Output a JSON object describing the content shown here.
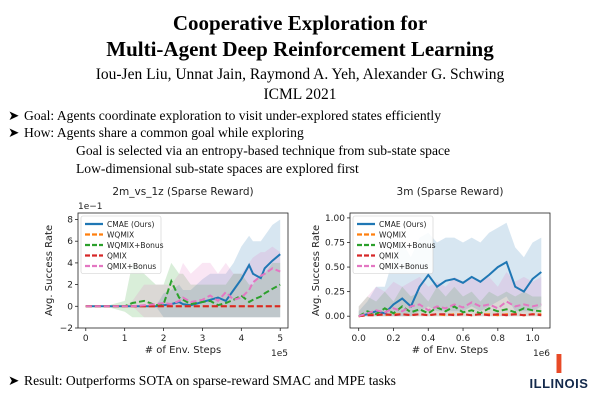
{
  "poster": {
    "title_line1": "Cooperative Exploration for",
    "title_line2": "Multi-Agent Deep Reinforcement Learning",
    "authors": "Iou-Jen Liu, Unnat Jain, Raymond A. Yeh, Alexander G. Schwing",
    "venue": "ICML 2021",
    "bullet_glyph": "➤",
    "goal": "Goal: Agents coordinate exploration to visit under-explored states efficiently",
    "how": "How: Agents share a common goal while exploring",
    "how_sub1": "Goal is selected via an entropy-based technique from sub-state space",
    "how_sub2": "Low-dimensional sub-state spaces are explored first",
    "result": "Result: Outperforms SOTA on sparse-reward SMAC and MPE tasks",
    "logo_text": "ILLINOIS",
    "logo_mark": "I",
    "logo_color": "#e84a27",
    "logo_text_color": "#13294b"
  },
  "chart_data": [
    {
      "type": "line",
      "title": "2m_vs_1z (Sparse Reward)",
      "xlabel": "# of Env. Steps",
      "ylabel": "Avg. Success Rate",
      "x_multiplier": "1e5",
      "y_multiplier": "1e−1",
      "xlim": [
        -0.2,
        5.2
      ],
      "ylim": [
        -2,
        8.6
      ],
      "xticks": [
        0,
        1,
        2,
        3,
        4,
        5
      ],
      "yticks": [
        -2,
        0,
        2,
        4,
        6,
        8
      ],
      "xtick_labels": [
        "0",
        "1",
        "2",
        "3",
        "4",
        "5"
      ],
      "ytick_labels": [
        "−2",
        "0",
        "2",
        "4",
        "6",
        "8"
      ],
      "legend_position": "top-left",
      "x": [
        0,
        0.5,
        1.0,
        1.2,
        1.5,
        1.8,
        2.0,
        2.2,
        2.4,
        2.5,
        2.7,
        3.0,
        3.2,
        3.4,
        3.6,
        3.8,
        4.0,
        4.2,
        4.3,
        4.5,
        4.6,
        4.8,
        5.0
      ],
      "series": [
        {
          "name": "CMAE (Ours)",
          "color": "#1f77b4",
          "style": "solid",
          "values": [
            0,
            0,
            0,
            0,
            0,
            0,
            0.1,
            0.2,
            0.4,
            0.2,
            0.1,
            0.4,
            0.6,
            0.8,
            0.5,
            1.5,
            2.5,
            3.8,
            3.0,
            2.6,
            3.5,
            4.2,
            4.8
          ],
          "band": [
            [
              0,
              0
            ],
            [
              0,
              0
            ],
            [
              0,
              0
            ],
            [
              0,
              0
            ],
            [
              0,
              0
            ],
            [
              0,
              0
            ],
            [
              -1,
              1.2
            ],
            [
              -1,
              1.5
            ],
            [
              -1,
              2
            ],
            [
              -1,
              1.5
            ],
            [
              -1,
              1.5
            ],
            [
              -1,
              2.5
            ],
            [
              -1,
              3
            ],
            [
              -1,
              3
            ],
            [
              -1,
              3
            ],
            [
              -1,
              4
            ],
            [
              -1,
              5.5
            ],
            [
              -1,
              6.5
            ],
            [
              -1,
              6
            ],
            [
              -1,
              6
            ],
            [
              -1,
              6.5
            ],
            [
              -1,
              7.5
            ],
            [
              -1,
              8
            ]
          ]
        },
        {
          "name": "WQMIX",
          "color": "#ff7f0e",
          "style": "dashed",
          "values": [
            0,
            0,
            0,
            0,
            0,
            0,
            0,
            0,
            0,
            0,
            0,
            0,
            0,
            0,
            0,
            0,
            0,
            0,
            0,
            0,
            0,
            0,
            0
          ]
        },
        {
          "name": "WQMIX+Bonus",
          "color": "#2ca02c",
          "style": "dashed",
          "values": [
            0,
            0,
            0,
            0.3,
            0.5,
            0.1,
            0.2,
            2.3,
            0.8,
            0.6,
            0.2,
            0.4,
            0.5,
            0.1,
            0.3,
            0.6,
            1.0,
            0.4,
            0.6,
            0.9,
            1.2,
            1.6,
            2.0
          ],
          "band": [
            [
              0,
              0
            ],
            [
              0,
              0
            ],
            [
              -0.5,
              0.5
            ],
            [
              -1,
              4
            ],
            [
              -1,
              3
            ],
            [
              -1,
              2
            ],
            [
              -1,
              2
            ],
            [
              -1,
              4
            ],
            [
              -1,
              3
            ],
            [
              -1,
              3
            ],
            [
              -1,
              2
            ],
            [
              -1,
              2
            ],
            [
              -1,
              2
            ],
            [
              -1,
              2
            ],
            [
              -1,
              2
            ],
            [
              -1,
              3
            ],
            [
              -1,
              3
            ],
            [
              -1,
              2
            ],
            [
              -1,
              2
            ],
            [
              -1,
              3
            ],
            [
              -1,
              3
            ],
            [
              -1,
              4
            ],
            [
              -1,
              4
            ]
          ]
        },
        {
          "name": "QMIX",
          "color": "#d62728",
          "style": "dashed",
          "values": [
            0,
            0,
            0,
            0,
            0,
            0,
            0,
            0,
            0,
            0,
            0,
            0,
            0,
            0,
            0,
            0,
            0,
            0,
            0,
            0,
            0,
            0,
            0
          ]
        },
        {
          "name": "QMIX+Bonus",
          "color": "#e377c2",
          "style": "dashed",
          "values": [
            0,
            0,
            0,
            0,
            0.1,
            0.2,
            0.3,
            0.2,
            0.5,
            0.8,
            0.4,
            0.6,
            1.0,
            0.5,
            1.3,
            0.6,
            0.8,
            1.5,
            2.2,
            2.8,
            3.0,
            3.5,
            3.2
          ],
          "band": [
            [
              0,
              0
            ],
            [
              0,
              0
            ],
            [
              0,
              0
            ],
            [
              0,
              0.5
            ],
            [
              -1,
              2
            ],
            [
              -1,
              2
            ],
            [
              -1,
              2
            ],
            [
              -1,
              2
            ],
            [
              -1,
              3
            ],
            [
              -1,
              4
            ],
            [
              -1,
              3
            ],
            [
              -1,
              4
            ],
            [
              -1,
              4
            ],
            [
              -1,
              3
            ],
            [
              -1,
              4
            ],
            [
              -1,
              3
            ],
            [
              -1,
              3
            ],
            [
              -1,
              4
            ],
            [
              -1,
              4.5
            ],
            [
              -1,
              5
            ],
            [
              -1,
              5
            ],
            [
              -1,
              5.5
            ],
            [
              -1,
              5
            ]
          ]
        }
      ]
    },
    {
      "type": "line",
      "title": "3m (Sparse Reward)",
      "xlabel": "# of Env. Steps",
      "ylabel": "Avg. Success Rate",
      "x_multiplier": "1e6",
      "xlim": [
        -0.05,
        1.1
      ],
      "ylim": [
        -0.12,
        1.05
      ],
      "xticks": [
        0,
        0.2,
        0.4,
        0.6,
        0.8,
        1.0
      ],
      "yticks": [
        0,
        0.25,
        0.5,
        0.75,
        1.0
      ],
      "xtick_labels": [
        "0.0",
        "0.2",
        "0.4",
        "0.6",
        "0.8",
        "1.0"
      ],
      "ytick_labels": [
        "0.00",
        "0.25",
        "0.50",
        "0.75",
        "1.00"
      ],
      "legend_position": "top-left",
      "x": [
        0,
        0.05,
        0.1,
        0.15,
        0.2,
        0.25,
        0.3,
        0.35,
        0.4,
        0.45,
        0.5,
        0.55,
        0.6,
        0.65,
        0.7,
        0.75,
        0.8,
        0.85,
        0.9,
        0.95,
        1.0,
        1.05
      ],
      "series": [
        {
          "name": "CMAE (Ours)",
          "color": "#1f77b4",
          "style": "solid",
          "values": [
            0.0,
            0.02,
            0.05,
            0.03,
            0.12,
            0.18,
            0.1,
            0.3,
            0.42,
            0.3,
            0.36,
            0.38,
            0.34,
            0.4,
            0.35,
            0.42,
            0.5,
            0.55,
            0.3,
            0.25,
            0.38,
            0.45
          ],
          "band": [
            [
              0,
              0.05
            ],
            [
              0,
              0.15
            ],
            [
              0,
              0.3
            ],
            [
              0,
              0.3
            ],
            [
              0,
              0.6
            ],
            [
              0,
              0.75
            ],
            [
              0,
              0.6
            ],
            [
              0.05,
              0.8
            ],
            [
              0.1,
              0.85
            ],
            [
              0.05,
              0.75
            ],
            [
              0.05,
              0.8
            ],
            [
              0.05,
              0.8
            ],
            [
              0.05,
              0.75
            ],
            [
              0.1,
              0.8
            ],
            [
              0.05,
              0.75
            ],
            [
              0.1,
              0.85
            ],
            [
              0.15,
              0.9
            ],
            [
              0.2,
              0.95
            ],
            [
              0.05,
              0.7
            ],
            [
              0.05,
              0.6
            ],
            [
              0.05,
              0.75
            ],
            [
              0.1,
              0.8
            ]
          ]
        },
        {
          "name": "WQMIX",
          "color": "#ff7f0e",
          "style": "dashed",
          "values": [
            0,
            0.01,
            0.02,
            0.01,
            0.02,
            0.02,
            0.01,
            0.02,
            0.01,
            0.02,
            0.01,
            0.02,
            0.02,
            0.01,
            0.02,
            0.02,
            0.01,
            0.02,
            0.02,
            0.01,
            0.02,
            0.02
          ]
        },
        {
          "name": "WQMIX+Bonus",
          "color": "#2ca02c",
          "style": "dashed",
          "values": [
            0,
            0.05,
            0.02,
            0.08,
            0.03,
            0.1,
            0.04,
            0.07,
            0.03,
            0.09,
            0.05,
            0.1,
            0.04,
            0.06,
            0.03,
            0.08,
            0.05,
            0.07,
            0.04,
            0.08,
            0.06,
            0.05
          ],
          "band": [
            [
              0,
              0.1
            ],
            [
              0,
              0.2
            ],
            [
              0,
              0.15
            ],
            [
              0,
              0.25
            ],
            [
              0,
              0.15
            ],
            [
              0,
              0.3
            ],
            [
              0,
              0.2
            ],
            [
              0,
              0.25
            ],
            [
              0,
              0.15
            ],
            [
              0,
              0.3
            ],
            [
              0,
              0.2
            ],
            [
              0,
              0.3
            ],
            [
              0,
              0.2
            ],
            [
              0,
              0.25
            ],
            [
              0,
              0.15
            ],
            [
              0,
              0.25
            ],
            [
              0,
              0.2
            ],
            [
              0,
              0.25
            ],
            [
              0,
              0.2
            ],
            [
              0,
              0.25
            ],
            [
              0,
              0.2
            ],
            [
              0,
              0.2
            ]
          ]
        },
        {
          "name": "QMIX",
          "color": "#d62728",
          "style": "dashed",
          "values": [
            0,
            0.01,
            0.01,
            0.02,
            0.01,
            0.02,
            0.01,
            0.02,
            0.01,
            0.02,
            0.02,
            0.01,
            0.02,
            0.01,
            0.02,
            0.01,
            0.02,
            0.01,
            0.02,
            0.01,
            0.02,
            0.01
          ]
        },
        {
          "name": "QMIX+Bonus",
          "color": "#e377c2",
          "style": "dashed",
          "values": [
            0,
            0.03,
            0.06,
            0.04,
            0.08,
            0.05,
            0.1,
            0.12,
            0.06,
            0.1,
            0.08,
            0.12,
            0.09,
            0.14,
            0.1,
            0.12,
            0.08,
            0.15,
            0.1,
            0.12,
            0.1,
            0.12
          ],
          "band": [
            [
              0,
              0.1
            ],
            [
              0,
              0.2
            ],
            [
              0,
              0.3
            ],
            [
              0,
              0.25
            ],
            [
              0,
              0.35
            ],
            [
              0,
              0.3
            ],
            [
              0,
              0.35
            ],
            [
              0,
              0.4
            ],
            [
              0,
              0.3
            ],
            [
              0,
              0.35
            ],
            [
              0,
              0.3
            ],
            [
              0,
              0.4
            ],
            [
              0,
              0.35
            ],
            [
              0,
              0.4
            ],
            [
              0,
              0.35
            ],
            [
              0,
              0.4
            ],
            [
              0,
              0.3
            ],
            [
              0,
              0.45
            ],
            [
              0,
              0.35
            ],
            [
              0,
              0.4
            ],
            [
              0,
              0.35
            ],
            [
              0,
              0.4
            ]
          ]
        }
      ]
    }
  ]
}
